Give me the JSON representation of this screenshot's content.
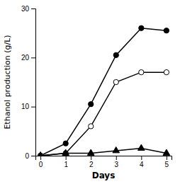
{
  "chart_data": {
    "type": "line",
    "xlabel": "Days",
    "ylabel": "Ethanol production (g/L)",
    "x": [
      0,
      1,
      2,
      3,
      4,
      5
    ],
    "series": [
      {
        "color": "#000000",
        "marker": "circle",
        "values": [
          0.0,
          2.5,
          10.5,
          20.5,
          26.0,
          25.5
        ]
      },
      {
        "color": "#000000",
        "marker": "open-circle",
        "values": [
          0.0,
          0.5,
          6.0,
          15.0,
          17.0,
          17.0
        ]
      },
      {
        "color": "#000000",
        "marker": "triangle",
        "values": [
          0.0,
          0.5,
          0.5,
          1.0,
          1.5,
          0.5
        ]
      }
    ],
    "xlim": [
      -0.2,
      5.2
    ],
    "ylim": [
      0,
      30
    ],
    "xticks": [
      0,
      1,
      2,
      3,
      4,
      5
    ],
    "yticks": [
      0,
      10,
      20,
      30
    ],
    "grid": false
  }
}
